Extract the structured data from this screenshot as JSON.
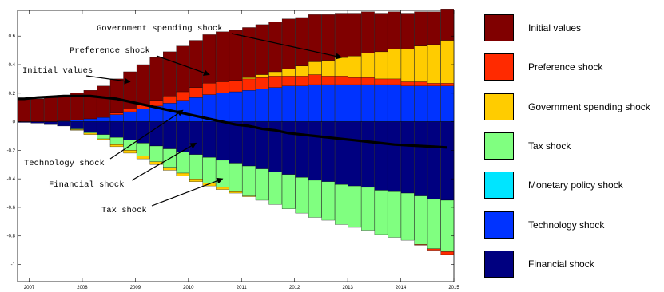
{
  "chart_data": {
    "type": "bar",
    "stacked": true,
    "x_ticks": [
      "2007",
      "2008",
      "2009",
      "2010",
      "2011",
      "2012",
      "2013",
      "2014",
      "2015"
    ],
    "y_ticks": [
      "0.6",
      "0.4",
      "0.2",
      "0",
      "-0.2",
      "-0.4",
      "-0.6",
      "-0.8",
      "-1"
    ],
    "ylim": [
      -1.12,
      0.78
    ],
    "grid": false,
    "legend_position": "right",
    "n_bars": 33,
    "series": [
      {
        "name": "Initial values",
        "color": "#800000",
        "values": [
          0.16,
          0.16,
          0.17,
          0.18,
          0.19,
          0.2,
          0.22,
          0.24,
          0.26,
          0.28,
          0.3,
          0.31,
          0.32,
          0.33,
          0.34,
          0.35,
          0.35,
          0.35,
          0.35,
          0.35,
          0.35,
          0.34,
          0.33,
          0.32,
          0.31,
          0.3,
          0.29,
          0.27,
          0.26,
          0.25,
          0.24,
          0.23,
          0.22
        ]
      },
      {
        "name": "Preference shock",
        "color": "#ff2a00",
        "values": [
          0,
          0,
          0,
          0,
          0,
          0,
          0,
          0.01,
          0.02,
          0.03,
          0.04,
          0.05,
          0.06,
          0.07,
          0.08,
          0.08,
          0.08,
          0.08,
          0.08,
          0.08,
          0.07,
          0.07,
          0.07,
          0.06,
          0.06,
          0.05,
          0.05,
          0.04,
          0.04,
          0.03,
          0.03,
          0.02,
          0.02
        ]
      },
      {
        "name": "Government spending shock",
        "color": "#ffcc00",
        "values": [
          0,
          0,
          0,
          0,
          0,
          0,
          0,
          0,
          0,
          0,
          0,
          0,
          0,
          0,
          0,
          0,
          0,
          0.01,
          0.02,
          0.03,
          0.05,
          0.07,
          0.09,
          0.11,
          0.13,
          0.15,
          0.17,
          0.19,
          0.21,
          0.23,
          0.25,
          0.27,
          0.3
        ]
      },
      {
        "name": "Tax shock",
        "color": "#80ff80",
        "values": [
          0,
          0,
          0,
          0,
          -0.005,
          -0.01,
          -0.03,
          -0.05,
          -0.07,
          -0.09,
          -0.11,
          -0.13,
          -0.15,
          -0.17,
          -0.18,
          -0.19,
          -0.2,
          -0.21,
          -0.22,
          -0.23,
          -0.24,
          -0.25,
          -0.26,
          -0.27,
          -0.28,
          -0.29,
          -0.3,
          -0.31,
          -0.32,
          -0.33,
          -0.34,
          -0.35,
          -0.36
        ]
      },
      {
        "name": "Monetary policy shock",
        "color": "#00e5ff",
        "values": [
          0,
          0,
          0,
          0,
          0,
          0,
          0,
          0,
          0,
          0,
          0,
          0,
          0,
          0,
          0,
          0,
          0,
          0,
          0,
          0,
          0,
          0,
          0,
          0,
          0,
          0,
          0,
          0,
          0,
          0,
          0,
          0,
          0
        ]
      },
      {
        "name": "Technology shock",
        "color": "#0033ff",
        "values": [
          0,
          0,
          0,
          0.005,
          0.01,
          0.02,
          0.03,
          0.05,
          0.07,
          0.09,
          0.11,
          0.13,
          0.15,
          0.17,
          0.19,
          0.2,
          0.21,
          0.22,
          0.23,
          0.24,
          0.25,
          0.25,
          0.26,
          0.26,
          0.26,
          0.26,
          0.26,
          0.26,
          0.26,
          0.25,
          0.25,
          0.25,
          0.25
        ]
      },
      {
        "name": "Financial shock",
        "color": "#000080",
        "values": [
          -0.005,
          -0.01,
          -0.02,
          -0.03,
          -0.05,
          -0.07,
          -0.09,
          -0.11,
          -0.13,
          -0.15,
          -0.17,
          -0.19,
          -0.21,
          -0.23,
          -0.25,
          -0.27,
          -0.29,
          -0.31,
          -0.33,
          -0.35,
          -0.37,
          -0.39,
          -0.41,
          -0.42,
          -0.44,
          -0.45,
          -0.46,
          -0.48,
          -0.49,
          -0.5,
          -0.52,
          -0.54,
          -0.55
        ]
      }
    ],
    "negative_extras": [
      {
        "color": "#ffcc00",
        "values": [
          0,
          0,
          0,
          0,
          -0.005,
          -0.01,
          -0.01,
          -0.015,
          -0.02,
          -0.02,
          -0.02,
          -0.02,
          -0.02,
          -0.02,
          -0.02,
          -0.015,
          -0.01,
          -0.005,
          0,
          0,
          0,
          0,
          0,
          0,
          0,
          0,
          0,
          0,
          0,
          0,
          0,
          0,
          0
        ]
      },
      {
        "color": "#ff2a00",
        "values": [
          0,
          0,
          0,
          0,
          0,
          0,
          0,
          0,
          0,
          0,
          0,
          0,
          0,
          0,
          0,
          0,
          0,
          0,
          0,
          0,
          0,
          0,
          0,
          0,
          0,
          0,
          0,
          0,
          0,
          0,
          -0.005,
          -0.01,
          -0.02
        ]
      }
    ],
    "total_line": [
      0.16,
      0.17,
      0.175,
      0.18,
      0.18,
      0.18,
      0.17,
      0.16,
      0.14,
      0.12,
      0.1,
      0.08,
      0.06,
      0.04,
      0.02,
      0.0,
      -0.02,
      -0.03,
      -0.05,
      -0.06,
      -0.08,
      -0.09,
      -0.1,
      -0.11,
      -0.12,
      -0.13,
      -0.14,
      -0.15,
      -0.16,
      -0.165,
      -0.17,
      -0.175,
      -0.18
    ],
    "annotations": [
      {
        "text": "Government spending shock",
        "target_bar": 24,
        "target_value": 0.45
      },
      {
        "text": "Preference shock",
        "target_bar": 14,
        "target_value": 0.33
      },
      {
        "text": "Initial values",
        "target_bar": 8,
        "target_value": 0.28
      },
      {
        "text": "Technology shock",
        "target_bar": 12,
        "target_value": 0.08
      },
      {
        "text": "Financial shock",
        "target_bar": 13,
        "target_value": -0.15
      },
      {
        "text": "Tax shock",
        "target_bar": 15,
        "target_value": -0.4
      }
    ]
  }
}
